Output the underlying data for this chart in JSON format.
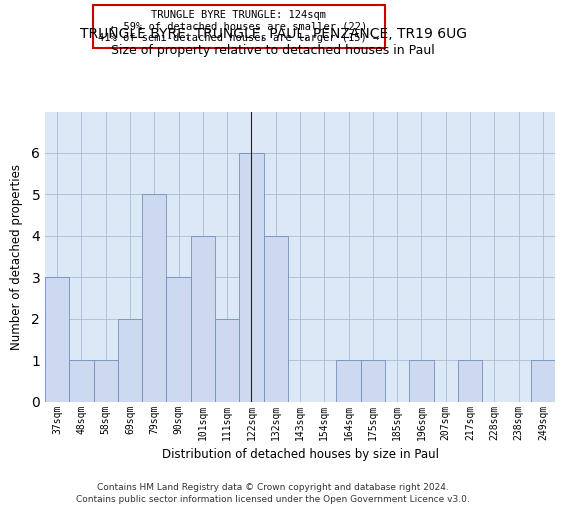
{
  "title": "TRUNGLE BYRE, TRUNGLE, PAUL, PENZANCE, TR19 6UG",
  "subtitle": "Size of property relative to detached houses in Paul",
  "xlabel": "Distribution of detached houses by size in Paul",
  "ylabel": "Number of detached properties",
  "bar_labels": [
    "37sqm",
    "48sqm",
    "58sqm",
    "69sqm",
    "79sqm",
    "90sqm",
    "101sqm",
    "111sqm",
    "122sqm",
    "132sqm",
    "143sqm",
    "154sqm",
    "164sqm",
    "175sqm",
    "185sqm",
    "196sqm",
    "207sqm",
    "217sqm",
    "228sqm",
    "238sqm",
    "249sqm"
  ],
  "bar_values": [
    3,
    1,
    1,
    2,
    5,
    3,
    4,
    2,
    6,
    4,
    0,
    0,
    1,
    1,
    0,
    1,
    0,
    1,
    0,
    0,
    1
  ],
  "bar_color": "#ccd9ee",
  "bar_edge_color": "#7090c0",
  "highlight_bar_index": 8,
  "highlight_line_color": "#222222",
  "annotation_text": "TRUNGLE BYRE TRUNGLE: 124sqm\n← 59% of detached houses are smaller (22)\n41% of semi-detached houses are larger (15) →",
  "annotation_box_color": "#ffffff",
  "annotation_box_edge_color": "#cc0000",
  "ylim": [
    0,
    7
  ],
  "yticks": [
    0,
    1,
    2,
    3,
    4,
    5,
    6
  ],
  "ax_facecolor": "#dce8f5",
  "background_color": "#ffffff",
  "grid_color": "#aabbd4",
  "footer_line1": "Contains HM Land Registry data © Crown copyright and database right 2024.",
  "footer_line2": "Contains public sector information licensed under the Open Government Licence v3.0."
}
